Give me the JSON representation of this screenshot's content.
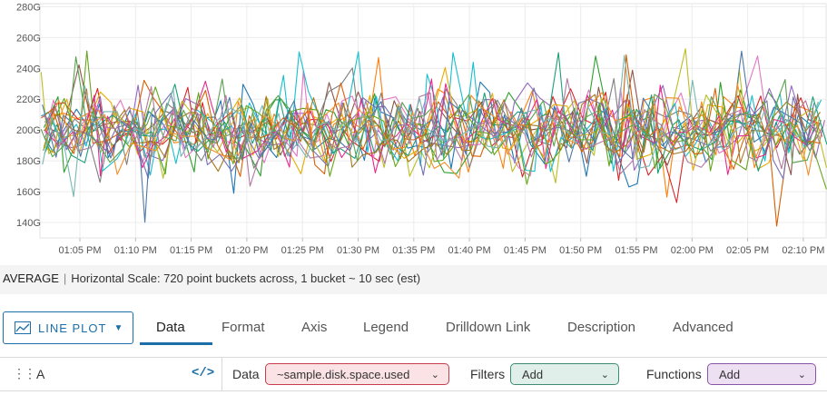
{
  "chart_data": {
    "type": "line",
    "y_tick_labels": [
      "280G",
      "260G",
      "240G",
      "220G",
      "200G",
      "180G",
      "160G",
      "140G"
    ],
    "y_tick_values": [
      280,
      260,
      240,
      220,
      200,
      180,
      160,
      140
    ],
    "y_unit": "G",
    "ylim": [
      130,
      282
    ],
    "x_tick_labels": [
      "01:05 PM",
      "01:10 PM",
      "01:15 PM",
      "01:20 PM",
      "01:25 PM",
      "01:30 PM",
      "01:35 PM",
      "01:40 PM",
      "01:45 PM",
      "01:50 PM",
      "01:55 PM",
      "02:00 PM",
      "02:05 PM",
      "02:10 PM"
    ],
    "x_start_label": "01:01 PM",
    "x_end_label": "02:12 PM",
    "series_count": 22,
    "series_mean": 200,
    "series_spread": 18,
    "grid": true,
    "series_colors": [
      "#1f77b4",
      "#ff7f0e",
      "#2ca02c",
      "#d62728",
      "#9467bd",
      "#8c564b",
      "#e377c2",
      "#7f7f7f",
      "#bcbd22",
      "#17becf",
      "#e6ab02",
      "#1b9e77",
      "#d95f02",
      "#7570b3",
      "#e7298a",
      "#66a61e",
      "#a6761d",
      "#4e79a7",
      "#f28e2b",
      "#59a14f",
      "#b07aa1",
      "#76b7b2"
    ]
  },
  "scale_bar": {
    "aggregation": "AVERAGE",
    "separator": "|",
    "description": "Horizontal Scale: 720 point buckets across, 1 bucket ~ 10 sec (est)"
  },
  "plot_type": {
    "label": "LINE PLOT",
    "icon": "line-chart-icon"
  },
  "tabs": [
    {
      "label": "Data",
      "active": true
    },
    {
      "label": "Format",
      "active": false
    },
    {
      "label": "Axis",
      "active": false
    },
    {
      "label": "Legend",
      "active": false
    },
    {
      "label": "Drilldown Link",
      "active": false
    },
    {
      "label": "Description",
      "active": false
    },
    {
      "label": "Advanced",
      "active": false
    }
  ],
  "query": {
    "name": "A",
    "data_label": "Data",
    "data_value": "~sample.disk.space.used",
    "filters_label": "Filters",
    "filters_value": "Add",
    "functions_label": "Functions",
    "functions_value": "Add"
  },
  "colors": {
    "accent": "#1b6ea8",
    "data_pill_bg": "#fbe3e5",
    "data_pill_border": "#c63e4c",
    "filters_pill_bg": "#e0efe9",
    "filters_pill_border": "#3f8a74",
    "functions_pill_bg": "#ece0f2",
    "functions_pill_border": "#8a55a8"
  }
}
